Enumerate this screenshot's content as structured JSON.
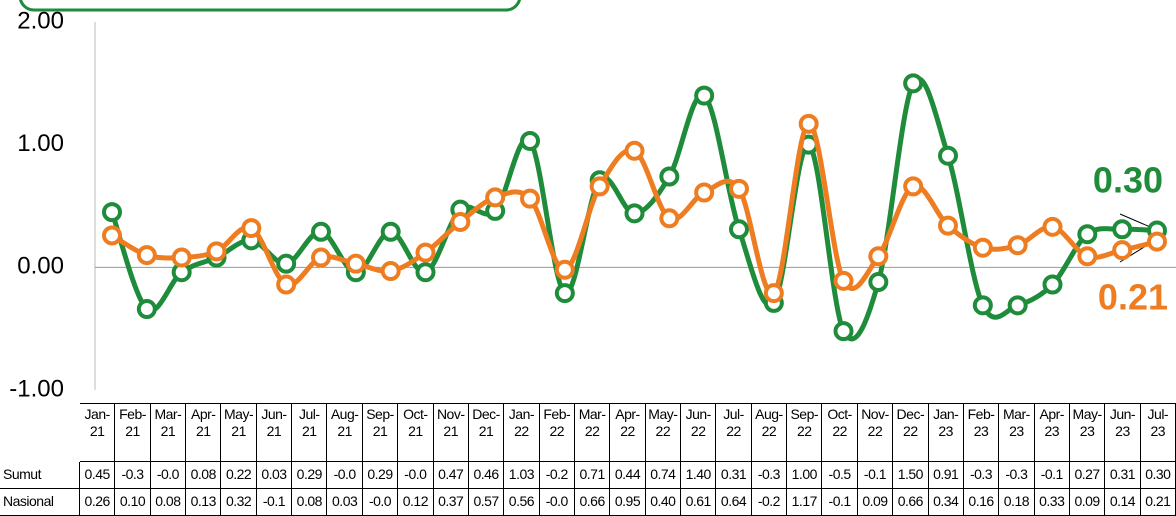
{
  "chart_data": {
    "type": "line",
    "categories": [
      "Jan-21",
      "Feb-21",
      "Mar-21",
      "Apr-21",
      "May-21",
      "Jun-21",
      "Jul-21",
      "Aug-21",
      "Sep-21",
      "Oct-21",
      "Nov-21",
      "Dec-21",
      "Jan-22",
      "Feb-22",
      "Mar-22",
      "Apr-22",
      "May-22",
      "Jun-22",
      "Jul-22",
      "Aug-22",
      "Sep-22",
      "Oct-22",
      "Nov-22",
      "Dec-22",
      "Jan-23",
      "Feb-23",
      "Mar-23",
      "Apr-23",
      "May-23",
      "Jun-23",
      "Jul-23"
    ],
    "series": [
      {
        "name": "Sumut",
        "color": "#1e8c3a",
        "values": [
          0.45,
          -0.34,
          -0.04,
          0.08,
          0.22,
          0.03,
          0.29,
          -0.04,
          0.29,
          -0.04,
          0.47,
          0.46,
          1.03,
          -0.21,
          0.71,
          0.44,
          0.74,
          1.4,
          0.31,
          -0.29,
          1.0,
          -0.52,
          -0.12,
          1.5,
          0.91,
          -0.31,
          -0.31,
          -0.14,
          0.27,
          0.31,
          0.3
        ],
        "value_labels": [
          "0.45",
          "-0.3",
          "-0.0",
          "0.08",
          "0.22",
          "0.03",
          "0.29",
          "-0.0",
          "0.29",
          "-0.0",
          "0.47",
          "0.46",
          "1.03",
          "-0.2",
          "0.71",
          "0.44",
          "0.74",
          "1.40",
          "0.31",
          "-0.3",
          "1.00",
          "-0.5",
          "-0.1",
          "1.50",
          "0.91",
          "-0.3",
          "-0.3",
          "-0.1",
          "0.27",
          "0.31",
          "0.30"
        ]
      },
      {
        "name": "Nasional",
        "color": "#ee7d22",
        "values": [
          0.26,
          0.1,
          0.08,
          0.13,
          0.32,
          -0.14,
          0.08,
          0.03,
          -0.03,
          0.12,
          0.37,
          0.57,
          0.56,
          -0.02,
          0.66,
          0.95,
          0.4,
          0.61,
          0.64,
          -0.21,
          1.17,
          -0.11,
          0.09,
          0.66,
          0.34,
          0.16,
          0.18,
          0.33,
          0.09,
          0.14,
          0.21
        ],
        "value_labels": [
          "0.26",
          "0.10",
          "0.08",
          "0.13",
          "0.32",
          "-0.1",
          "0.08",
          "0.03",
          "-0.0",
          "0.12",
          "0.37",
          "0.57",
          "0.56",
          "-0.0",
          "0.66",
          "0.95",
          "0.40",
          "0.61",
          "0.64",
          "-0.2",
          "1.17",
          "-0.1",
          "0.09",
          "0.66",
          "0.34",
          "0.16",
          "0.18",
          "0.33",
          "0.09",
          "0.14",
          "0.21"
        ]
      }
    ],
    "ylim": [
      -1,
      2
    ],
    "yticks": [
      {
        "value": -1,
        "label": "-1.00"
      },
      {
        "value": 0,
        "label": "0.00"
      },
      {
        "value": 1,
        "label": "1.00"
      },
      {
        "value": 2,
        "label": "2.00"
      }
    ]
  }
}
